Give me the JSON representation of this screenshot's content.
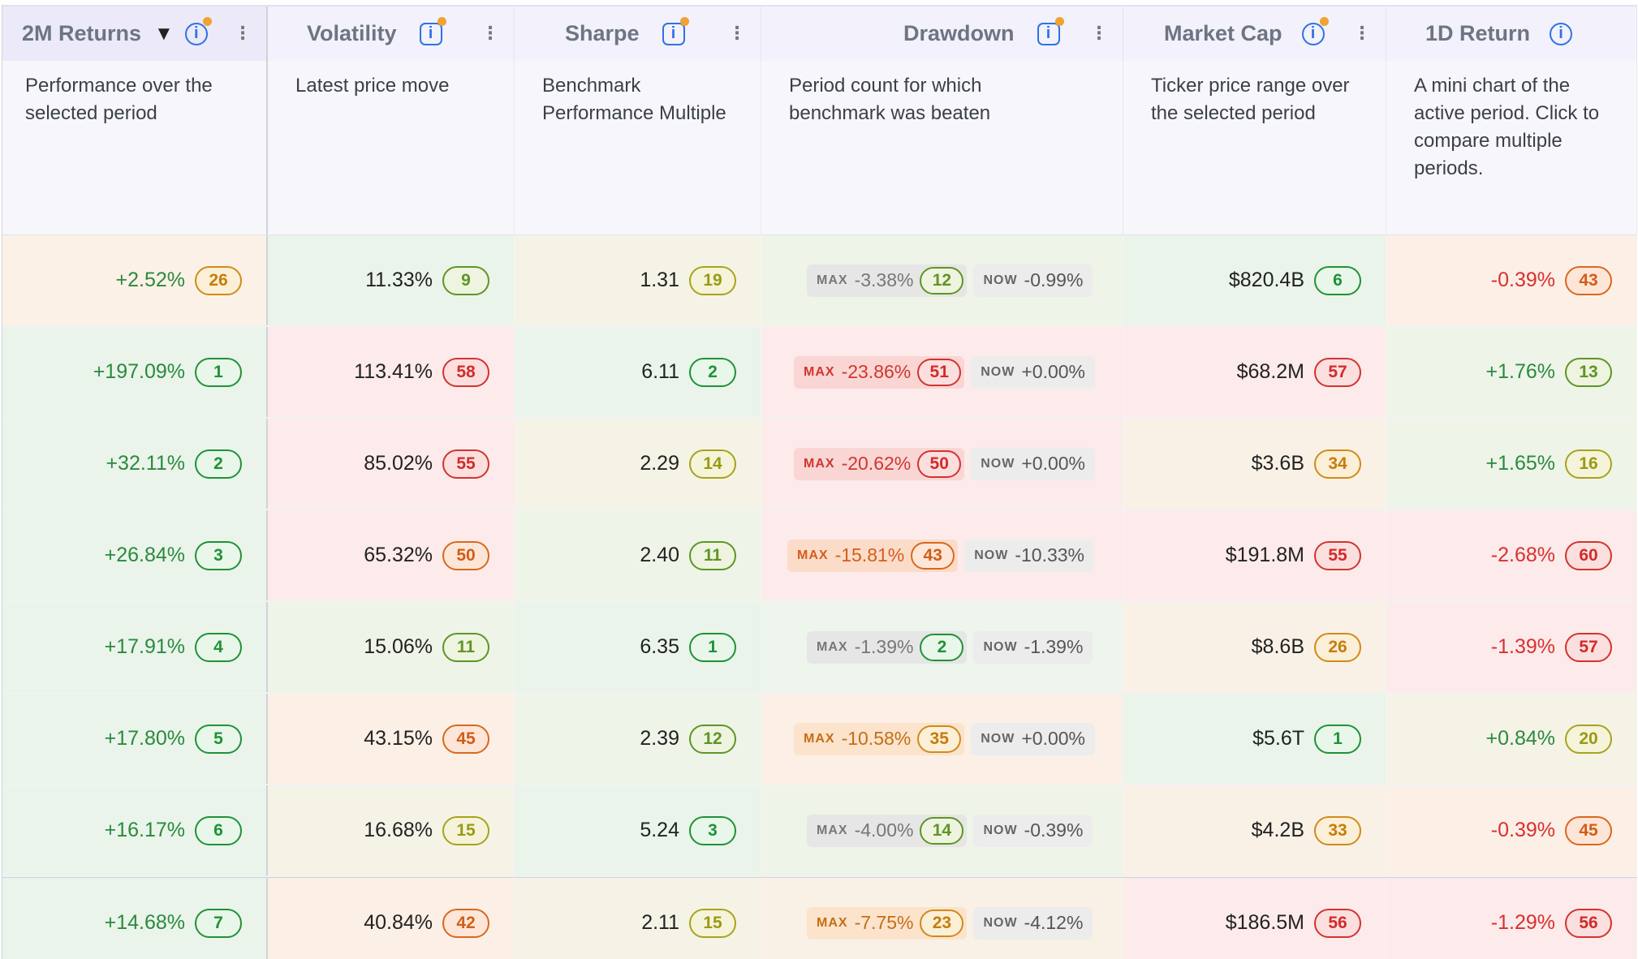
{
  "columns": [
    {
      "label": "2M Returns",
      "sort": "▼",
      "info_dot": true,
      "menu": "⋮",
      "desc": "Performance over the selected period"
    },
    {
      "label": "Volatility",
      "info_dot": true,
      "menu": "⋮",
      "desc": "Latest price move"
    },
    {
      "label": "Sharpe",
      "info_dot": true,
      "menu": "⋮",
      "desc": "Benchmark Performance Multiple"
    },
    {
      "label": "Drawdown",
      "info_dot": true,
      "menu": "⋮",
      "desc": "Period count for which benchmark was beaten"
    },
    {
      "label": "Market Cap",
      "info_dot": true,
      "menu": "⋮",
      "desc": "Ticker price range over the selected period"
    },
    {
      "label": "1D Return",
      "info_dot": false,
      "menu": "",
      "desc": "A mini chart of the active period. Click to compare multiple periods."
    }
  ],
  "info_glyph": "i",
  "tags": {
    "max": "MAX",
    "now": "NOW"
  },
  "rows": [
    {
      "ret": "+2.52%",
      "ret_rank": "26",
      "vol": "11.33%",
      "vol_rank": "9",
      "sharpe": "1.31",
      "sharpe_rank": "19",
      "dd_max": "-3.38%",
      "dd_rank": "12",
      "dd_now": "-0.99%",
      "mcap": "$820.4B",
      "mcap_rank": "6",
      "d1": "-0.39%",
      "d1_rank": "43"
    },
    {
      "ret": "+197.09%",
      "ret_rank": "1",
      "vol": "113.41%",
      "vol_rank": "58",
      "sharpe": "6.11",
      "sharpe_rank": "2",
      "dd_max": "-23.86%",
      "dd_rank": "51",
      "dd_now": "+0.00%",
      "mcap": "$68.2M",
      "mcap_rank": "57",
      "d1": "+1.76%",
      "d1_rank": "13"
    },
    {
      "ret": "+32.11%",
      "ret_rank": "2",
      "vol": "85.02%",
      "vol_rank": "55",
      "sharpe": "2.29",
      "sharpe_rank": "14",
      "dd_max": "-20.62%",
      "dd_rank": "50",
      "dd_now": "+0.00%",
      "mcap": "$3.6B",
      "mcap_rank": "34",
      "d1": "+1.65%",
      "d1_rank": "16"
    },
    {
      "ret": "+26.84%",
      "ret_rank": "3",
      "vol": "65.32%",
      "vol_rank": "50",
      "sharpe": "2.40",
      "sharpe_rank": "11",
      "dd_max": "-15.81%",
      "dd_rank": "43",
      "dd_now": "-10.33%",
      "mcap": "$191.8M",
      "mcap_rank": "55",
      "d1": "-2.68%",
      "d1_rank": "60"
    },
    {
      "ret": "+17.91%",
      "ret_rank": "4",
      "vol": "15.06%",
      "vol_rank": "11",
      "sharpe": "6.35",
      "sharpe_rank": "1",
      "dd_max": "-1.39%",
      "dd_rank": "2",
      "dd_now": "-1.39%",
      "mcap": "$8.6B",
      "mcap_rank": "26",
      "d1": "-1.39%",
      "d1_rank": "57"
    },
    {
      "ret": "+17.80%",
      "ret_rank": "5",
      "vol": "43.15%",
      "vol_rank": "45",
      "sharpe": "2.39",
      "sharpe_rank": "12",
      "dd_max": "-10.58%",
      "dd_rank": "35",
      "dd_now": "+0.00%",
      "mcap": "$5.6T",
      "mcap_rank": "1",
      "d1": "+0.84%",
      "d1_rank": "20"
    },
    {
      "ret": "+16.17%",
      "ret_rank": "6",
      "vol": "16.68%",
      "vol_rank": "15",
      "sharpe": "5.24",
      "sharpe_rank": "3",
      "dd_max": "-4.00%",
      "dd_rank": "14",
      "dd_now": "-0.39%",
      "mcap": "$4.2B",
      "mcap_rank": "33",
      "d1": "-0.39%",
      "d1_rank": "45"
    },
    {
      "ret": "+14.68%",
      "ret_rank": "7",
      "vol": "40.84%",
      "vol_rank": "42",
      "sharpe": "2.11",
      "sharpe_rank": "15",
      "dd_max": "-7.75%",
      "dd_rank": "23",
      "dd_now": "-4.12%",
      "mcap": "$186.5M",
      "mcap_rank": "56",
      "d1": "-1.29%",
      "d1_rank": "56"
    }
  ]
}
